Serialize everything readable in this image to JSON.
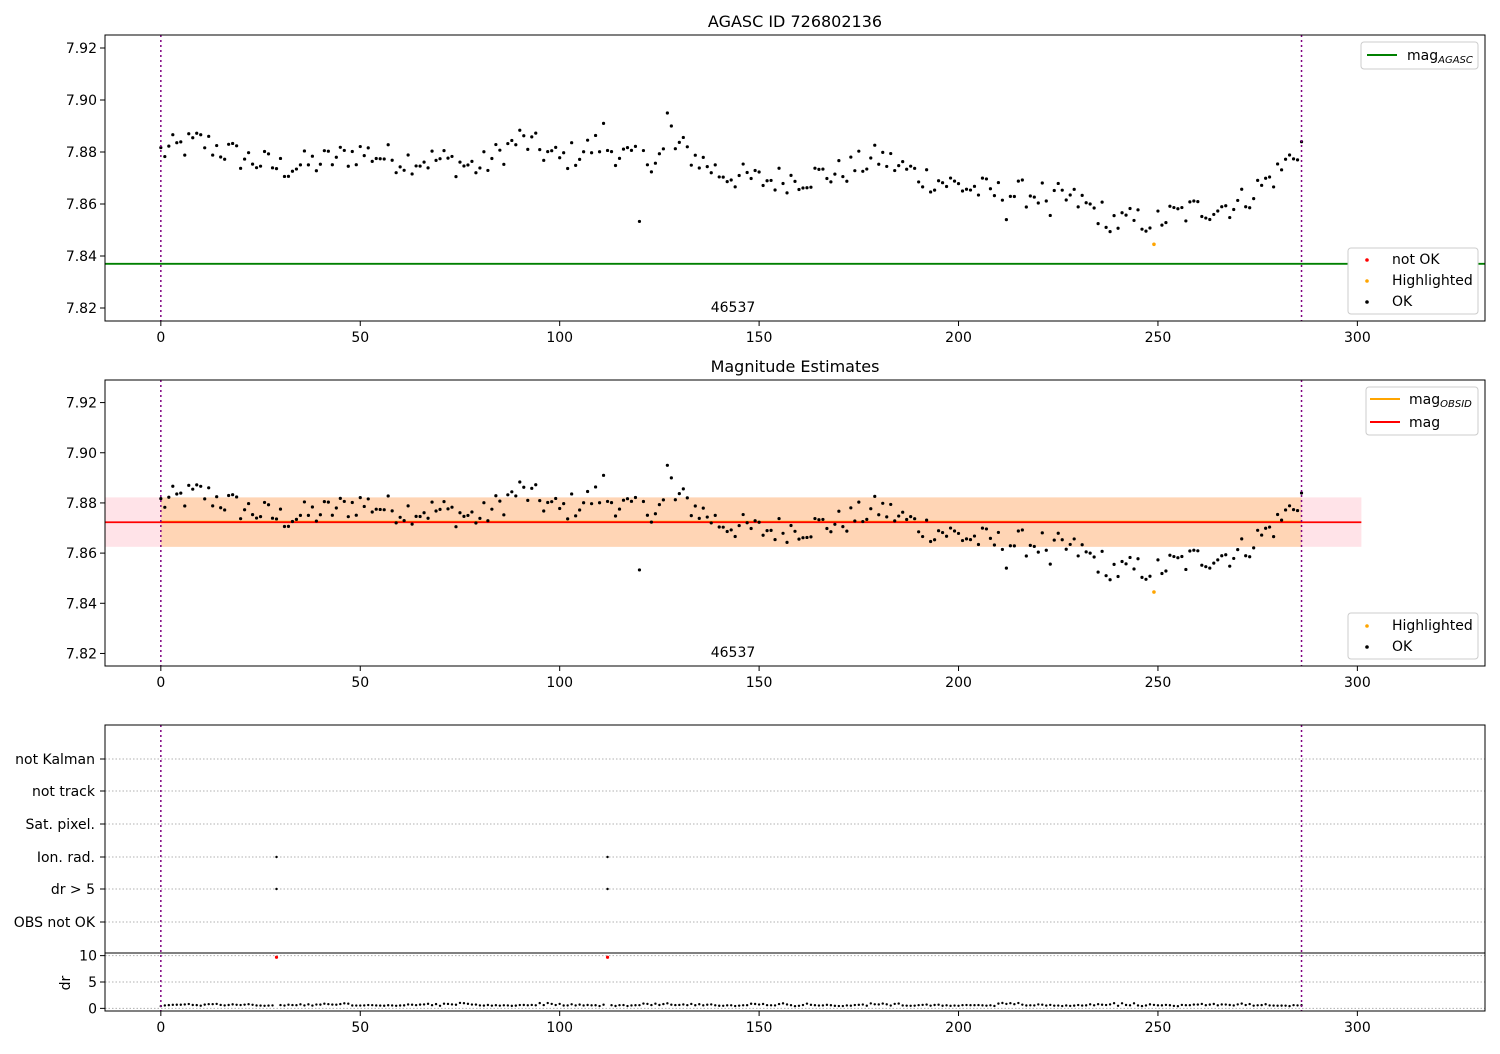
{
  "chart_data": [
    {
      "type": "scatter",
      "title": "AGASC ID 726802136",
      "xlim": [
        -14,
        332
      ],
      "ylim": [
        7.815,
        7.925
      ],
      "xticks": [
        "0",
        "50",
        "100",
        "150",
        "200",
        "250",
        "300"
      ],
      "yticks": [
        "7.82",
        "7.84",
        "7.86",
        "7.88",
        "7.90",
        "7.92"
      ],
      "ytick_values": [
        7.82,
        7.84,
        7.86,
        7.88,
        7.9,
        7.92
      ],
      "obsid_label": "46537",
      "obsid_boundaries": [
        0,
        286
      ],
      "reference_line": {
        "name": "mag",
        "subscript": "AGASC",
        "value": 7.837,
        "color": "#008000"
      },
      "legend_upper": [
        {
          "label": "mag",
          "subscript": "AGASC",
          "color": "#008000"
        }
      ],
      "legend_lower": [
        {
          "label": "not OK",
          "color": "#ff0000"
        },
        {
          "label": "Highlighted",
          "color": "#ffa500"
        },
        {
          "label": "OK",
          "color": "#000000"
        }
      ],
      "highlighted_points": [
        {
          "x": 249,
          "y": 7.8445
        }
      ],
      "grid": false
    },
    {
      "type": "scatter",
      "title": "Magnitude Estimates",
      "xlim": [
        -14,
        332
      ],
      "ylim": [
        7.815,
        7.929
      ],
      "xticks": [
        "0",
        "50",
        "100",
        "150",
        "200",
        "250",
        "300"
      ],
      "yticks": [
        "7.82",
        "7.84",
        "7.86",
        "7.88",
        "7.90",
        "7.92"
      ],
      "ytick_values": [
        7.82,
        7.84,
        7.86,
        7.88,
        7.9,
        7.92
      ],
      "obsid_label": "46537",
      "obsid_boundaries": [
        0,
        286
      ],
      "mag": {
        "value": 7.8723,
        "band": [
          7.8625,
          7.8822
        ],
        "xrange": [
          -14,
          301
        ],
        "color": "#ff0000"
      },
      "mag_obsid": {
        "value": 7.8725,
        "band": [
          7.8625,
          7.8822
        ],
        "xrange": [
          0,
          286
        ],
        "color": "#ffa500"
      },
      "legend_upper": [
        {
          "label": "mag",
          "subscript": "OBSID",
          "color": "#ffa500"
        },
        {
          "label": "mag",
          "subscript": "",
          "color": "#ff0000"
        }
      ],
      "legend_lower": [
        {
          "label": "Highlighted",
          "color": "#ffa500"
        },
        {
          "label": "OK",
          "color": "#000000"
        }
      ],
      "highlighted_points": [
        {
          "x": 249,
          "y": 7.8445
        }
      ],
      "grid": false
    },
    {
      "type": "scatter",
      "title": "",
      "xlim": [
        -14,
        332
      ],
      "xticks": [
        "0",
        "50",
        "100",
        "150",
        "200",
        "250",
        "300"
      ],
      "flag_labels": [
        "not Kalman",
        "not track",
        "Sat. pixel.",
        "Ion. rad.",
        "dr > 5",
        "OBS not OK"
      ],
      "flag_points": [
        {
          "flag": "Ion. rad.",
          "x": [
            29,
            112
          ]
        },
        {
          "flag": "dr > 5",
          "x": [
            29,
            112
          ]
        }
      ],
      "dr": {
        "ylabel": "dr",
        "ylim": [
          -0.5,
          10.5
        ],
        "yticks": [
          "10",
          "5",
          "0"
        ],
        "ytick_values": [
          10,
          5,
          0
        ],
        "outliers": [
          {
            "x": 29,
            "y": 9.7
          },
          {
            "x": 112,
            "y": 9.7
          }
        ],
        "outlier_color": "#ff0000"
      },
      "obsid_boundaries": [
        0,
        286
      ],
      "grid": true
    }
  ]
}
